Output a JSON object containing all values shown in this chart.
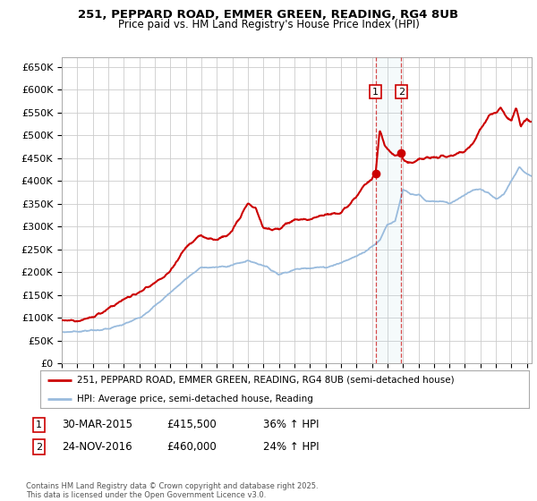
{
  "title1": "251, PEPPARD ROAD, EMMER GREEN, READING, RG4 8UB",
  "title2": "Price paid vs. HM Land Registry's House Price Index (HPI)",
  "legend1": "251, PEPPARD ROAD, EMMER GREEN, READING, RG4 8UB (semi-detached house)",
  "legend2": "HPI: Average price, semi-detached house, Reading",
  "sale1_date": "30-MAR-2015",
  "sale1_price": 415500,
  "sale1_label": "36% ↑ HPI",
  "sale1_year": 2015.24,
  "sale2_date": "24-NOV-2016",
  "sale2_price": 460000,
  "sale2_label": "24% ↑ HPI",
  "sale2_year": 2016.9,
  "footer": "Contains HM Land Registry data © Crown copyright and database right 2025.\nThis data is licensed under the Open Government Licence v3.0.",
  "red_color": "#cc0000",
  "blue_color": "#99bbdd",
  "bg_color": "#ffffff",
  "grid_color": "#cccccc",
  "ylim": [
    0,
    670000
  ],
  "xlim_start": 1995.0,
  "xlim_end": 2025.3,
  "hpi_key_years": [
    1995.0,
    1996.0,
    1997.0,
    1998.0,
    1999.0,
    2000.0,
    2001.0,
    2002.0,
    2003.0,
    2004.0,
    2005.0,
    2006.0,
    2007.0,
    2008.0,
    2009.0,
    2010.0,
    2011.0,
    2012.0,
    2013.0,
    2014.0,
    2015.0,
    2015.5,
    2016.0,
    2016.5,
    2017.0,
    2017.5,
    2018.0,
    2018.5,
    2019.0,
    2019.5,
    2020.0,
    2020.5,
    2021.0,
    2021.5,
    2022.0,
    2022.5,
    2023.0,
    2023.5,
    2024.0,
    2024.5,
    2025.0,
    2025.3
  ],
  "hpi_key_vals": [
    68000,
    70000,
    72000,
    75000,
    85000,
    100000,
    125000,
    155000,
    185000,
    210000,
    210000,
    215000,
    225000,
    215000,
    195000,
    205000,
    210000,
    210000,
    220000,
    235000,
    255000,
    270000,
    305000,
    310000,
    380000,
    370000,
    370000,
    355000,
    355000,
    355000,
    350000,
    360000,
    370000,
    380000,
    380000,
    375000,
    360000,
    370000,
    400000,
    430000,
    415000,
    410000
  ],
  "pp_key_years": [
    1995.0,
    1996.0,
    1997.0,
    1998.0,
    1999.0,
    2000.0,
    2001.0,
    2002.0,
    2003.0,
    2004.0,
    2005.0,
    2006.0,
    2007.0,
    2007.5,
    2008.0,
    2009.0,
    2010.0,
    2011.0,
    2012.0,
    2013.0,
    2014.0,
    2014.5,
    2015.0,
    2015.24,
    2015.5,
    2015.8,
    2016.0,
    2016.5,
    2016.9,
    2017.0,
    2017.3,
    2017.6,
    2018.0,
    2018.5,
    2019.0,
    2019.5,
    2020.0,
    2020.5,
    2021.0,
    2021.5,
    2022.0,
    2022.3,
    2022.6,
    2023.0,
    2023.3,
    2023.6,
    2024.0,
    2024.3,
    2024.6,
    2025.0,
    2025.3
  ],
  "pp_key_vals": [
    95000,
    93000,
    100000,
    120000,
    140000,
    155000,
    175000,
    200000,
    255000,
    280000,
    270000,
    290000,
    350000,
    340000,
    295000,
    295000,
    315000,
    315000,
    325000,
    330000,
    365000,
    390000,
    405000,
    415500,
    510000,
    480000,
    470000,
    455000,
    460000,
    450000,
    440000,
    440000,
    445000,
    450000,
    450000,
    455000,
    450000,
    460000,
    465000,
    480000,
    515000,
    530000,
    545000,
    550000,
    560000,
    545000,
    530000,
    560000,
    520000,
    535000,
    530000
  ]
}
